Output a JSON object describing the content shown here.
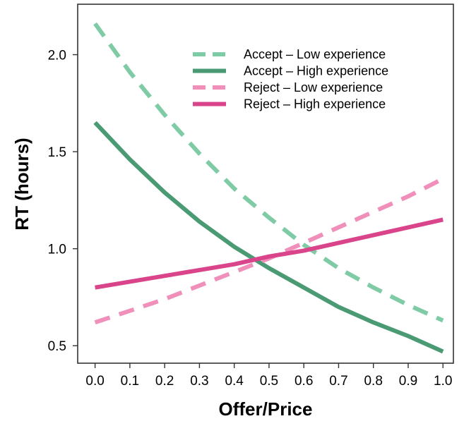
{
  "chart_data": {
    "type": "line",
    "title": "",
    "xlabel": "Offer/Price",
    "ylabel": "RT (hours)",
    "xlim": [
      -0.05,
      1.03
    ],
    "ylim": [
      0.41,
      2.26
    ],
    "xticks": [
      0.0,
      0.1,
      0.2,
      0.3,
      0.4,
      0.5,
      0.6,
      0.7,
      0.8,
      0.9,
      1.0
    ],
    "xtick_labels": [
      "0.0",
      "0.1",
      "0.2",
      "0.3",
      "0.4",
      "0.5",
      "0.6",
      "0.7",
      "0.8",
      "0.9",
      "1.0"
    ],
    "yticks": [
      0.5,
      1.0,
      1.5,
      2.0
    ],
    "ytick_labels": [
      "0.5",
      "1.0",
      "1.5",
      "2.0"
    ],
    "grid": false,
    "legend_position": "top-right",
    "x": [
      0.0,
      0.1,
      0.2,
      0.3,
      0.4,
      0.5,
      0.6,
      0.7,
      0.8,
      0.9,
      1.0
    ],
    "series": [
      {
        "name": "Accept – Low experience",
        "color": "#7ecba6",
        "style": "dashed",
        "values": [
          2.16,
          1.91,
          1.69,
          1.49,
          1.31,
          1.16,
          1.02,
          0.9,
          0.8,
          0.71,
          0.63
        ]
      },
      {
        "name": "Accept – High experience",
        "color": "#4a9a74",
        "style": "solid",
        "values": [
          1.65,
          1.46,
          1.29,
          1.14,
          1.01,
          0.9,
          0.8,
          0.7,
          0.62,
          0.55,
          0.47
        ]
      },
      {
        "name": "Reject – Low experience",
        "color": "#f08fba",
        "style": "dashed",
        "values": [
          0.62,
          0.68,
          0.74,
          0.81,
          0.88,
          0.95,
          1.03,
          1.11,
          1.19,
          1.27,
          1.36
        ]
      },
      {
        "name": "Reject – High experience",
        "color": "#d9448a",
        "style": "solid",
        "values": [
          0.8,
          0.83,
          0.86,
          0.89,
          0.92,
          0.96,
          0.99,
          1.03,
          1.07,
          1.11,
          1.15
        ]
      }
    ]
  }
}
